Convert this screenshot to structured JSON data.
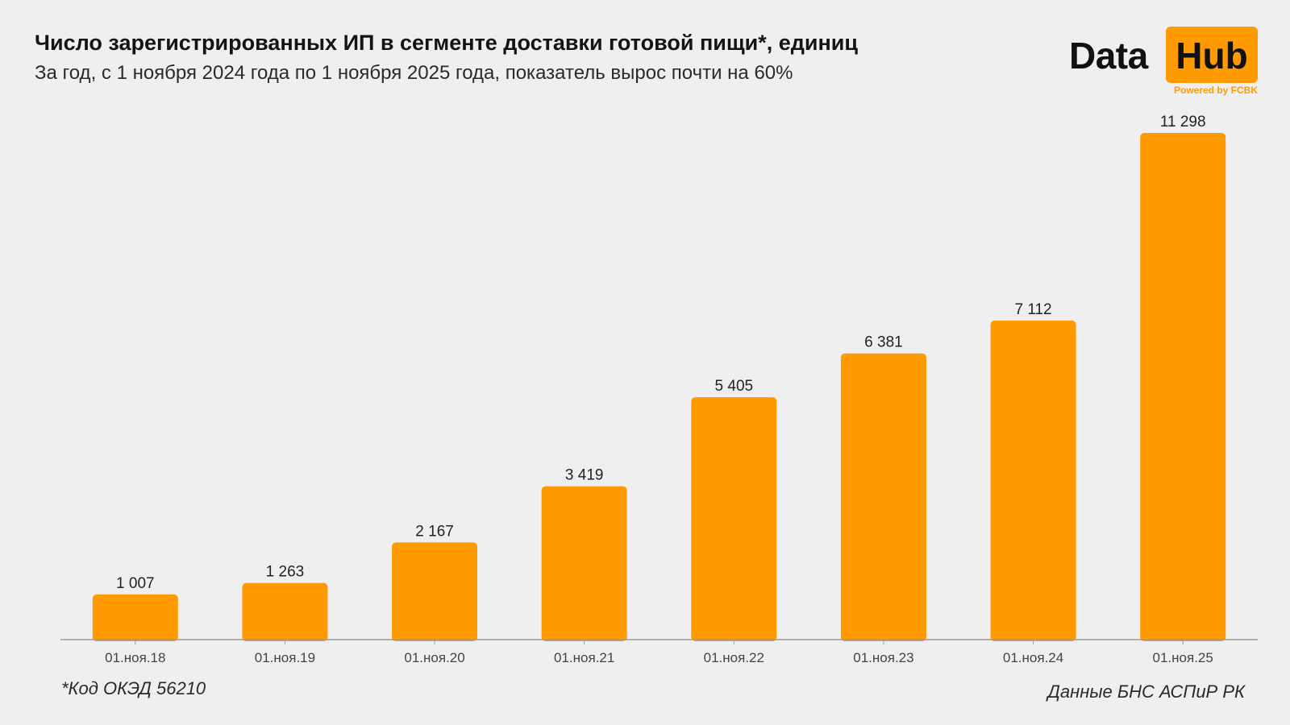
{
  "header": {
    "title": "Число зарегистрированных ИП в сегменте доставки готовой пищи*, единиц",
    "subtitle": "За год, с 1 ноября 2024 года по 1 ноября 2025 года, показатель вырос почти на 60%"
  },
  "logo": {
    "word_left": "Data",
    "word_right": "Hub",
    "tagline": "Powered by FCBK"
  },
  "footer": {
    "footnote": "*Код ОКЭД 56210",
    "source": "Данные БНС АСПиР РК"
  },
  "colors": {
    "bar": "#ff9a00",
    "background": "#efefef",
    "axis": "#9a9a9a"
  },
  "chart_data": {
    "type": "bar",
    "categories": [
      "01.ноя.18",
      "01.ноя.19",
      "01.ноя.20",
      "01.ноя.21",
      "01.ноя.22",
      "01.ноя.23",
      "01.ноя.24",
      "01.ноя.25"
    ],
    "values": [
      1007,
      1263,
      2167,
      3419,
      5405,
      6381,
      7112,
      11298
    ],
    "value_labels": [
      "1 007",
      "1 263",
      "2 167",
      "3 419",
      "5 405",
      "6 381",
      "7 112",
      "11 298"
    ],
    "ylim": [
      0,
      11298
    ],
    "grid": false,
    "legend": "none"
  }
}
